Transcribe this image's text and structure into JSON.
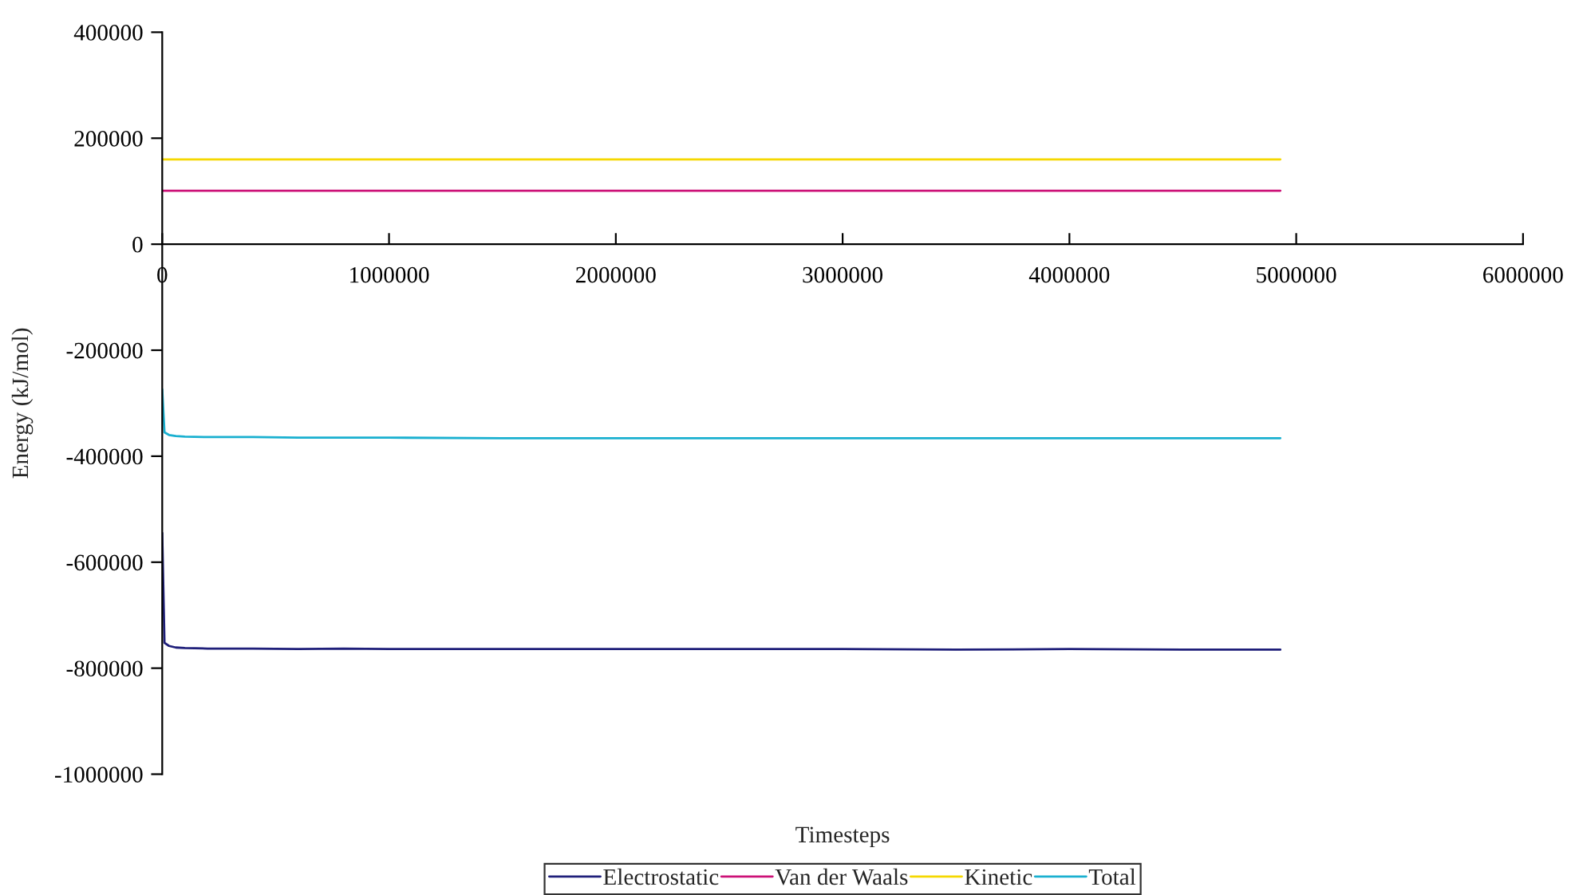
{
  "chart_data": {
    "type": "line",
    "xlabel": "Timesteps",
    "ylabel": "Energy (kJ/mol)",
    "xlim": [
      0,
      6000000
    ],
    "xticks": [
      0,
      1000000,
      2000000,
      3000000,
      4000000,
      5000000,
      6000000
    ],
    "ylim": [
      -1000000,
      400000
    ],
    "yticks": [
      -1000000,
      -800000,
      -600000,
      -400000,
      -200000,
      0,
      200000,
      400000
    ],
    "grid": false,
    "legend": "bottom",
    "marker": "none",
    "line_style": "solid",
    "x": [
      0,
      10000,
      30000,
      60000,
      100000,
      200000,
      400000,
      600000,
      800000,
      1000000,
      1500000,
      2000000,
      2500000,
      3000000,
      3500000,
      4000000,
      4500000,
      4930000
    ],
    "series": [
      {
        "name": "Electrostatic",
        "color": "#1f1f7a",
        "values": [
          -545000,
          -752000,
          -758000,
          -761000,
          -762000,
          -763000,
          -763000,
          -764000,
          -763000,
          -764000,
          -764000,
          -764000,
          -764000,
          -764000,
          -765000,
          -764000,
          -765000,
          -765000
        ]
      },
      {
        "name": "Van der Waals",
        "color": "#cc1177",
        "values": [
          101000,
          101000,
          101000,
          101000,
          101000,
          101000,
          101000,
          101000,
          101000,
          101000,
          101000,
          101000,
          101000,
          101000,
          101000,
          101000,
          101000,
          101000
        ]
      },
      {
        "name": "Kinetic",
        "color": "#f5d800",
        "values": [
          160000,
          160000,
          160000,
          160000,
          160000,
          160000,
          160000,
          160000,
          160000,
          160000,
          160000,
          160000,
          160000,
          160000,
          160000,
          160000,
          160000,
          160000
        ]
      },
      {
        "name": "Total",
        "color": "#1ab0d0",
        "values": [
          -274000,
          -355000,
          -360000,
          -362000,
          -363000,
          -364000,
          -364000,
          -365000,
          -365000,
          -365000,
          -366000,
          -366000,
          -366000,
          -366000,
          -366000,
          -366000,
          -366000,
          -366000
        ]
      }
    ]
  }
}
